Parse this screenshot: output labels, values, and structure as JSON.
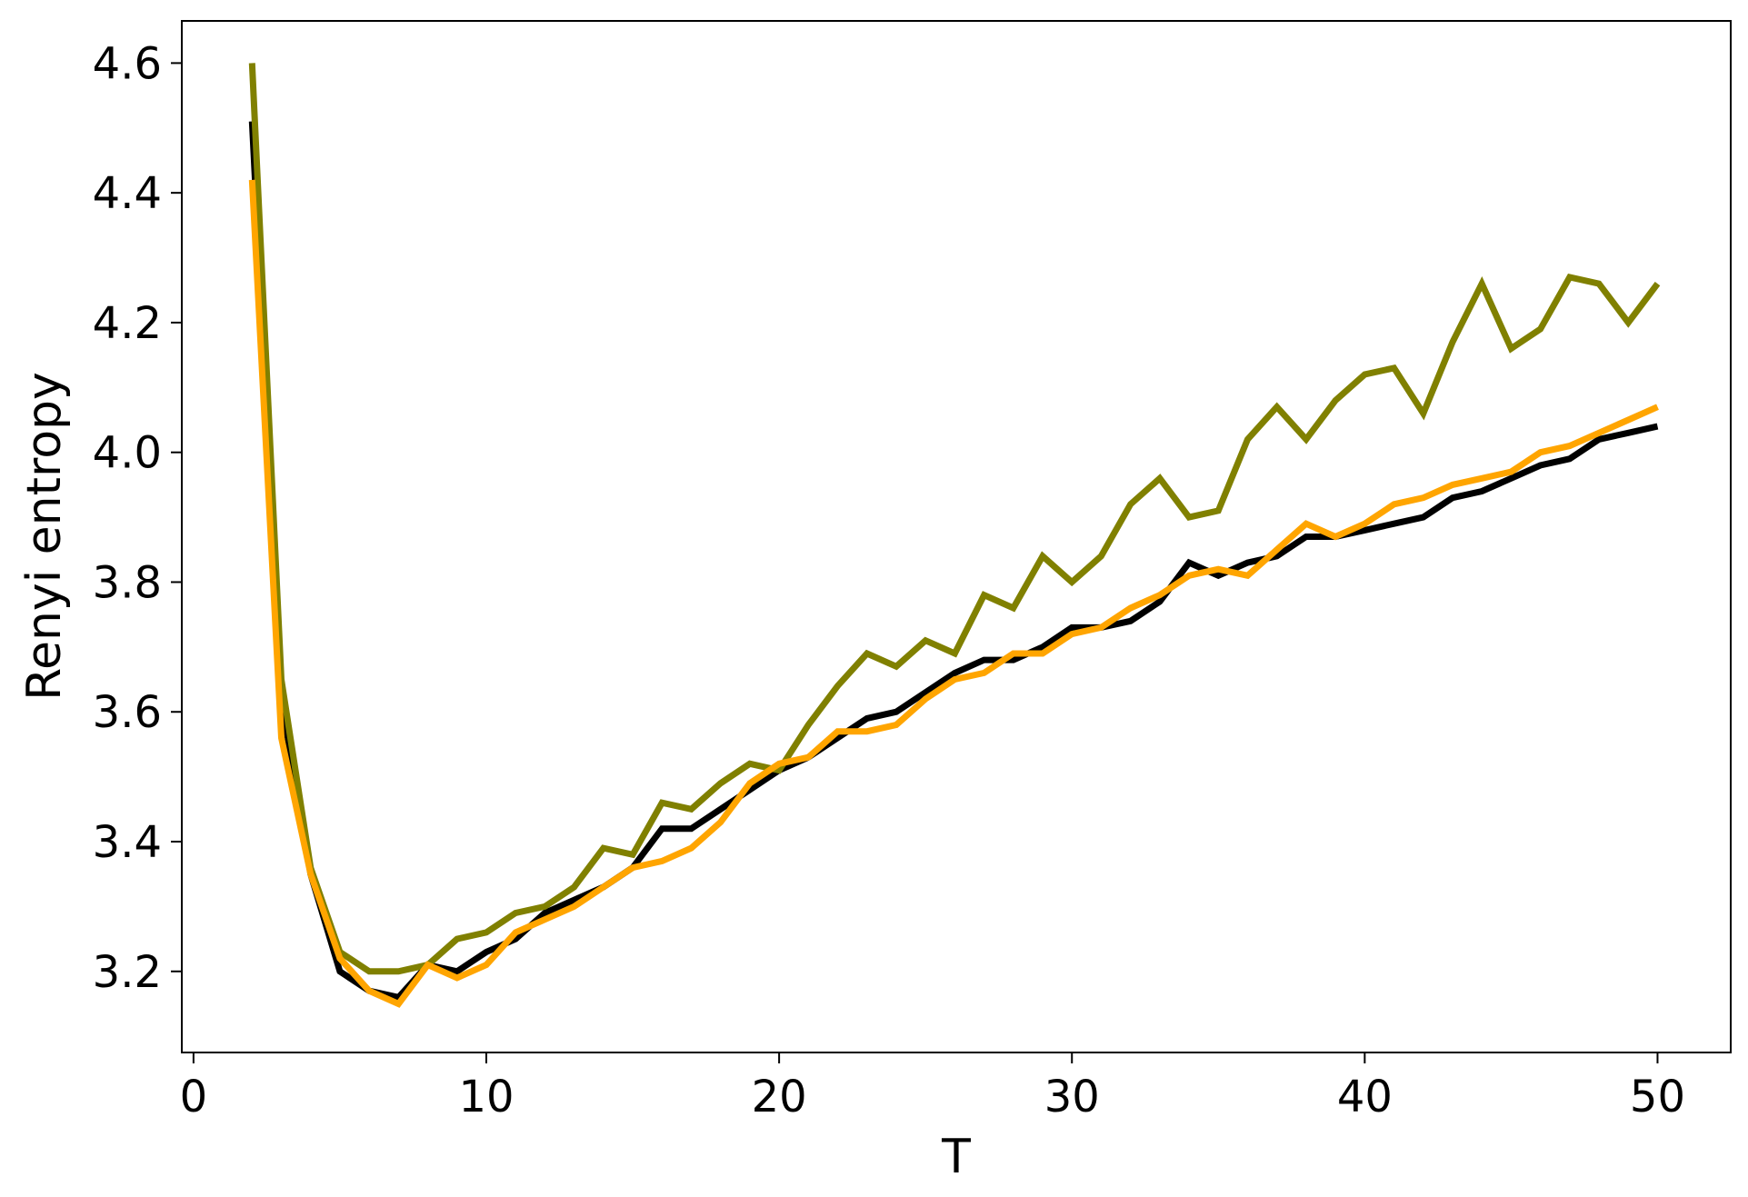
{
  "chart_data": {
    "type": "line",
    "title": "",
    "xlabel": "T",
    "ylabel": "Renyi entropy",
    "xlim": [
      -0.4,
      52.5
    ],
    "ylim": [
      3.075,
      4.665
    ],
    "grid": false,
    "xticks": [
      0,
      10,
      20,
      30,
      40,
      50
    ],
    "xtick_labels": [
      "0",
      "10",
      "20",
      "30",
      "40",
      "50"
    ],
    "yticks": [
      3.2,
      3.4,
      3.6,
      3.8,
      4.0,
      4.2,
      4.4,
      4.6
    ],
    "ytick_labels": [
      "3.2",
      "3.4",
      "3.6",
      "3.8",
      "4.0",
      "4.2",
      "4.4",
      "4.6"
    ],
    "x": [
      2,
      3,
      4,
      5,
      6,
      7,
      8,
      9,
      10,
      11,
      12,
      13,
      14,
      15,
      16,
      17,
      18,
      19,
      20,
      21,
      22,
      23,
      24,
      25,
      26,
      27,
      28,
      29,
      30,
      31,
      32,
      33,
      34,
      35,
      36,
      37,
      38,
      39,
      40,
      41,
      42,
      43,
      44,
      45,
      46,
      47,
      48,
      49,
      50
    ],
    "series": [
      {
        "color": "#000000",
        "values": [
          4.51,
          3.62,
          3.35,
          3.2,
          3.17,
          3.16,
          3.21,
          3.2,
          3.23,
          3.25,
          3.29,
          3.31,
          3.33,
          3.36,
          3.42,
          3.42,
          3.45,
          3.48,
          3.51,
          3.53,
          3.56,
          3.59,
          3.6,
          3.63,
          3.66,
          3.68,
          3.68,
          3.7,
          3.73,
          3.73,
          3.74,
          3.77,
          3.83,
          3.81,
          3.83,
          3.84,
          3.87,
          3.87,
          3.88,
          3.89,
          3.9,
          3.93,
          3.94,
          3.96,
          3.98,
          3.99,
          4.02,
          4.03,
          4.04
        ]
      },
      {
        "color": "#808000",
        "values": [
          4.6,
          3.65,
          3.36,
          3.23,
          3.2,
          3.2,
          3.21,
          3.25,
          3.26,
          3.29,
          3.3,
          3.33,
          3.39,
          3.38,
          3.46,
          3.45,
          3.49,
          3.52,
          3.51,
          3.58,
          3.64,
          3.69,
          3.67,
          3.71,
          3.69,
          3.78,
          3.76,
          3.84,
          3.8,
          3.84,
          3.92,
          3.96,
          3.9,
          3.91,
          4.02,
          4.07,
          4.02,
          4.08,
          4.12,
          4.13,
          4.06,
          4.17,
          4.26,
          4.16,
          4.19,
          4.27,
          4.26,
          4.2,
          4.26
        ]
      },
      {
        "color": "#ffa500",
        "values": [
          4.42,
          3.56,
          3.35,
          3.22,
          3.17,
          3.15,
          3.21,
          3.19,
          3.21,
          3.26,
          3.28,
          3.3,
          3.33,
          3.36,
          3.37,
          3.39,
          3.43,
          3.49,
          3.52,
          3.53,
          3.57,
          3.57,
          3.58,
          3.62,
          3.65,
          3.66,
          3.69,
          3.69,
          3.72,
          3.73,
          3.76,
          3.78,
          3.81,
          3.82,
          3.81,
          3.85,
          3.89,
          3.87,
          3.89,
          3.92,
          3.93,
          3.95,
          3.96,
          3.97,
          4.0,
          4.01,
          4.03,
          4.05,
          4.07
        ]
      }
    ]
  }
}
